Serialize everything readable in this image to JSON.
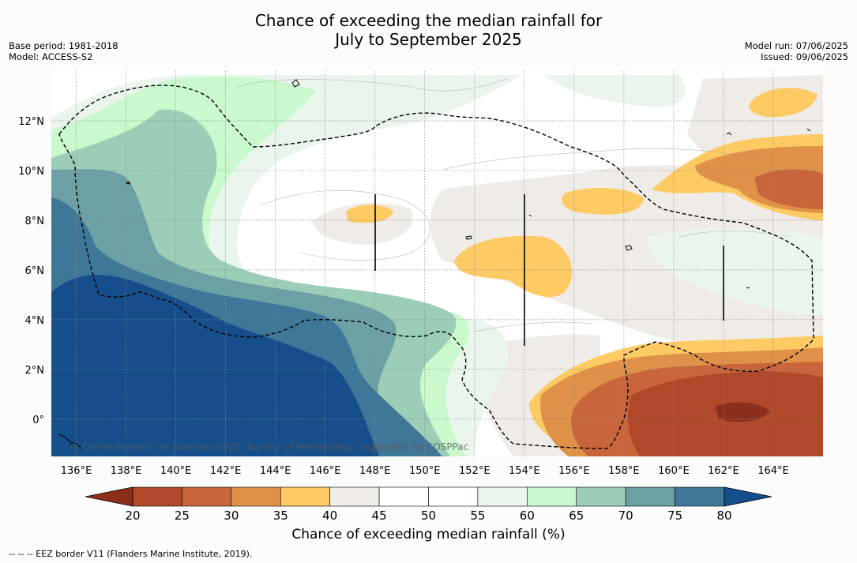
{
  "title": {
    "line1": "Chance of exceeding the median rainfall for",
    "line2": "July to September 2025"
  },
  "meta_left": {
    "base_period": "Base period: 1981-2018",
    "model": "Model: ACCESS-S2"
  },
  "meta_right": {
    "model_run": "Model run: 07/06/2025",
    "issued": "Issued: 09/06/2025"
  },
  "map": {
    "lon_ticks": [
      "136°E",
      "138°E",
      "140°E",
      "142°E",
      "144°E",
      "146°E",
      "148°E",
      "150°E",
      "152°E",
      "154°E",
      "156°E",
      "158°E",
      "160°E",
      "162°E",
      "164°E"
    ],
    "lon_values": [
      136,
      138,
      140,
      142,
      144,
      146,
      148,
      150,
      152,
      154,
      156,
      158,
      160,
      162,
      164
    ],
    "lat_ticks": [
      "12°N",
      "10°N",
      "8°N",
      "6°N",
      "4°N",
      "2°N",
      "0°"
    ],
    "lat_values": [
      12,
      10,
      8,
      6,
      4,
      2,
      0
    ],
    "lon_range": [
      135,
      166
    ],
    "lat_range": [
      -1.5,
      14
    ],
    "copyright": "© Commonwealth of Australia 2025, Bureau of Meteorology, supported by COSPPac"
  },
  "colorbar": {
    "ticks": [
      "20",
      "25",
      "30",
      "35",
      "40",
      "45",
      "50",
      "55",
      "60",
      "65",
      "70",
      "75",
      "80"
    ],
    "colors": [
      "#8b2f1c",
      "#b0482a",
      "#c9653a",
      "#df9149",
      "#fdca63",
      "#efebe6",
      "#ffffff",
      "#ffffff",
      "#eaf5ec",
      "#c9f9cd",
      "#9ccdb6",
      "#6ba1a5",
      "#3f7799",
      "#154e8b"
    ],
    "label": "Chance of exceeding median rainfall (%)"
  },
  "footnote": "--  --  -- EEZ border V11 (Flanders Marine Institute, 2019)."
}
